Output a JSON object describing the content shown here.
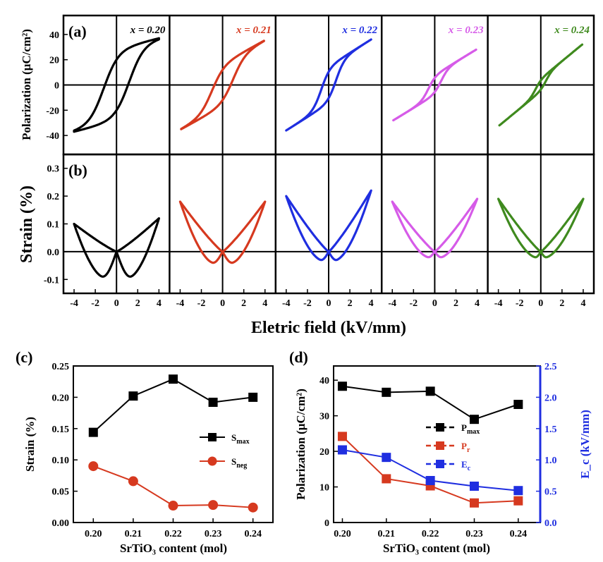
{
  "colors": {
    "x020": "#000000",
    "x021": "#d6391f",
    "x022": "#1f2ee0",
    "x023": "#d65be8",
    "x024": "#3f8a1e",
    "blue_axis": "#1f2ee0"
  },
  "top": {
    "shared_xlabel": "Eletric field (kV/mm)",
    "x_ticks": [
      "-4",
      "-2",
      "0",
      "2",
      "4"
    ],
    "compositions": [
      {
        "label": "x = 0.20",
        "color": "#000000"
      },
      {
        "label": "x = 0.21",
        "color": "#d6391f"
      },
      {
        "label": "x = 0.22",
        "color": "#1f2ee0"
      },
      {
        "label": "x = 0.23",
        "color": "#d65be8"
      },
      {
        "label": "x = 0.24",
        "color": "#3f8a1e"
      }
    ],
    "pe": {
      "panel_label": "(a)",
      "ylabel": "Polarization (μC/cm²)",
      "y_ticks": [
        "-40",
        "-20",
        "0",
        "20",
        "40"
      ]
    },
    "strain": {
      "panel_label": "(b)",
      "ylabel": "Strain (%)",
      "y_ticks": [
        "-0.1",
        "0.0",
        "0.1",
        "0.2",
        "0.3"
      ]
    }
  },
  "panel_c": {
    "panel_label": "(c)",
    "xlabel": "SrTiO₃ content (mol)",
    "ylabel": "Strain (%)",
    "x_ticks": [
      "0.20",
      "0.21",
      "0.22",
      "0.23",
      "0.24"
    ],
    "y_ticks": [
      "0.00",
      "0.05",
      "0.10",
      "0.15",
      "0.20",
      "0.25"
    ],
    "legend": [
      "S_max",
      "S_neg"
    ]
  },
  "panel_d": {
    "panel_label": "(d)",
    "xlabel": "SrTiO₃ content (mol)",
    "ylabel": "Polarization (μC/cm²)",
    "y2label": "E_c (kV/mm)",
    "x_ticks": [
      "0.20",
      "0.21",
      "0.22",
      "0.23",
      "0.24"
    ],
    "y_ticks": [
      "0",
      "10",
      "20",
      "30",
      "40"
    ],
    "y2_ticks": [
      "0.0",
      "0.5",
      "1.0",
      "1.5",
      "2.0",
      "2.5"
    ],
    "legend": [
      "P_max",
      "P_r",
      "E_c"
    ]
  },
  "chart_data": [
    {
      "type": "line",
      "name": "(a)",
      "xlabel": "Eletric field (kV/mm)",
      "ylabel": "Polarization (μC/cm²)",
      "xlim": [
        -5,
        5
      ],
      "ylim": [
        -55,
        55
      ],
      "loops": [
        {
          "label": "x = 0.20",
          "emax": 4.0,
          "pmax": 37,
          "pr": 24,
          "ec": 1.2
        },
        {
          "label": "x = 0.21",
          "emax": 3.9,
          "pmax": 35,
          "pr": 12,
          "ec": 1.0
        },
        {
          "label": "x = 0.22",
          "emax": 4.0,
          "pmax": 36,
          "pr": 10,
          "ec": 0.7
        },
        {
          "label": "x = 0.23",
          "emax": 3.9,
          "pmax": 28,
          "pr": 5,
          "ec": 0.6
        },
        {
          "label": "x = 0.24",
          "emax": 3.9,
          "pmax": 32,
          "pr": 3,
          "ec": 0.5
        }
      ]
    },
    {
      "type": "line",
      "name": "(b)",
      "xlabel": "Eletric field (kV/mm)",
      "ylabel": "Strain (%)",
      "xlim": [
        -5,
        5
      ],
      "ylim": [
        -0.15,
        0.35
      ],
      "loops": [
        {
          "label": "x = 0.20",
          "s_pos": 0.12,
          "s_negside": 0.1,
          "s_neg": -0.09,
          "e_min": 1.3
        },
        {
          "label": "x = 0.21",
          "s_pos": 0.18,
          "s_negside": 0.18,
          "s_neg": -0.04,
          "e_min": 0.9
        },
        {
          "label": "x = 0.22",
          "s_pos": 0.22,
          "s_negside": 0.2,
          "s_neg": -0.03,
          "e_min": 0.7
        },
        {
          "label": "x = 0.23",
          "s_pos": 0.19,
          "s_negside": 0.18,
          "s_neg": -0.02,
          "e_min": 0.6
        },
        {
          "label": "x = 0.24",
          "s_pos": 0.19,
          "s_negside": 0.19,
          "s_neg": -0.02,
          "e_min": 0.5
        }
      ]
    },
    {
      "type": "line",
      "name": "(c)",
      "xlabel": "SrTiO₃ content (mol)",
      "ylabel": "Strain (%)",
      "x": [
        0.2,
        0.21,
        0.22,
        0.23,
        0.24
      ],
      "xlim": [
        0.195,
        0.245
      ],
      "ylim": [
        0,
        0.25
      ],
      "series": [
        {
          "name": "S_max",
          "color": "#000000",
          "marker": "square",
          "values": [
            0.144,
            0.202,
            0.229,
            0.192,
            0.2
          ]
        },
        {
          "name": "S_neg",
          "color": "#d6391f",
          "marker": "circle",
          "values": [
            0.09,
            0.066,
            0.027,
            0.028,
            0.024
          ]
        }
      ]
    },
    {
      "type": "line",
      "name": "(d)",
      "xlabel": "SrTiO₃ content (mol)",
      "ylabel": "Polarization (μC/cm²)",
      "y2label": "E_c (kV/mm)",
      "x": [
        0.2,
        0.21,
        0.22,
        0.23,
        0.24
      ],
      "xlim": [
        0.198,
        0.245
      ],
      "ylim": [
        0,
        44
      ],
      "y2lim": [
        0,
        2.5
      ],
      "series": [
        {
          "name": "P_max",
          "color": "#000000",
          "axis": "left",
          "values": [
            38.3,
            36.6,
            36.9,
            29.0,
            33.2
          ]
        },
        {
          "name": "P_r",
          "color": "#d6391f",
          "axis": "left",
          "values": [
            24.2,
            12.3,
            10.3,
            5.5,
            6.1
          ]
        },
        {
          "name": "E_c",
          "color": "#1f2ee0",
          "axis": "right",
          "values": [
            1.16,
            1.04,
            0.67,
            0.58,
            0.51
          ]
        }
      ]
    }
  ]
}
